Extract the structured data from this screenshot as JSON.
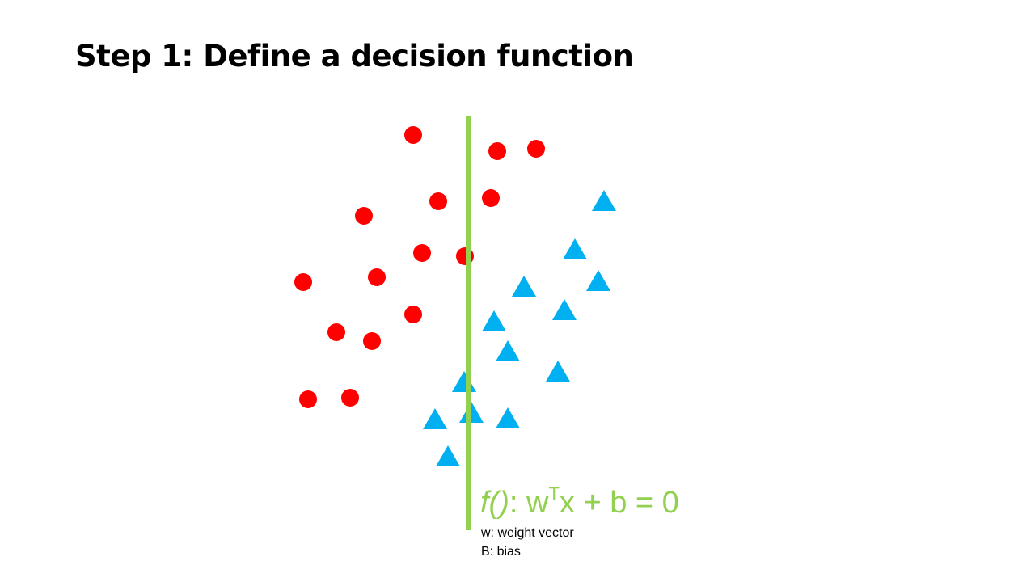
{
  "slide": {
    "title": "Step 1: Define a decision function"
  },
  "colors": {
    "class_a": "#ff0000",
    "class_b": "#00b0f0",
    "boundary": "#92d050"
  },
  "diagram": {
    "class_a_shape": "circle",
    "class_b_shape": "triangle"
  },
  "equation": {
    "function": "f()",
    "colon": ":",
    "lhs_w": " w",
    "superscript": "T",
    "rest": "x + b = 0"
  },
  "definitions": {
    "w": "w: weight vector",
    "b": "B: bias"
  }
}
